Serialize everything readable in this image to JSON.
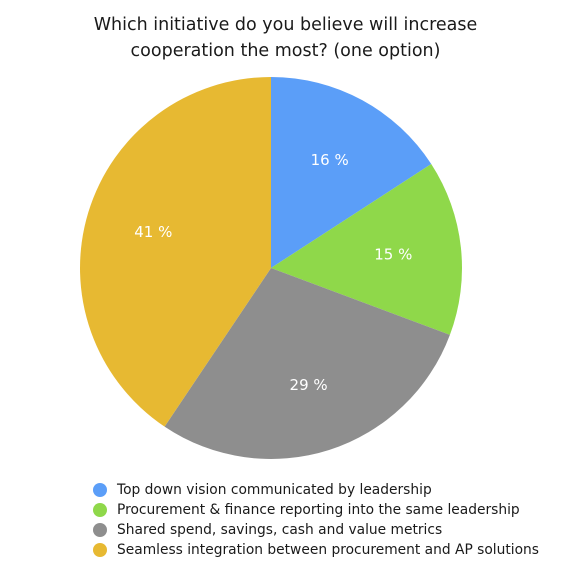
{
  "chart_data": {
    "type": "pie",
    "title_lines": [
      "Which initiative do you believe will increase",
      "cooperation the most? (one option)"
    ],
    "slices": [
      {
        "label": "Top down vision communicated by leadership",
        "value": 16,
        "display": "16 %",
        "color": "#5b9ef8"
      },
      {
        "label": "Procurement & finance reporting into the same leadership",
        "value": 15,
        "display": "15 %",
        "color": "#8fd84a"
      },
      {
        "label": "Shared spend, savings, cash and value metrics",
        "value": 29,
        "display": "29 %",
        "color": "#8e8e8e"
      },
      {
        "label": "Seamless integration between procurement and AP solutions",
        "value": 41,
        "display": "41 %",
        "color": "#e7b932"
      }
    ],
    "start": "12 o'clock",
    "direction": "clockwise",
    "legend_position": "bottom-left"
  }
}
